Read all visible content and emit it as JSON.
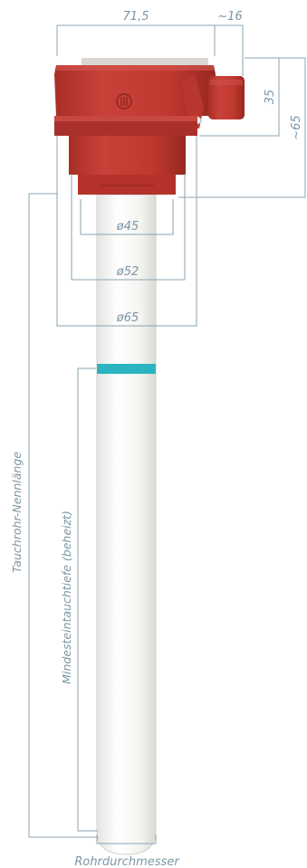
{
  "dimensions": {
    "width_top": "71,5",
    "connector_width": "~16",
    "head_height": "35",
    "total_height": "~65",
    "d45": "ø45",
    "d52": "ø52",
    "d65": "ø65"
  },
  "labels": {
    "nominal_length": "Tauchrohr-Nennlänge",
    "min_immersion": "Mindesteintauchtiefe (beheizt)",
    "tube_diameter": "Rohrdurchmesser"
  },
  "colors": {
    "head": "#c0382f",
    "head_dark": "#9b2a22",
    "tube": "#f7f7f5",
    "band": "#2bb3c0",
    "dimension_lines": "#8aa3b2"
  },
  "icons": {
    "logo": "brand-logo-icon"
  }
}
